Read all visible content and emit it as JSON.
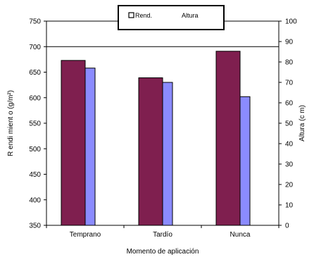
{
  "chart_data": {
    "type": "bar",
    "title": "",
    "xlabel": "Momento  de  aplicación",
    "ylabel": "R endi mient o  (g/m²)",
    "y2label": "Altura  (c m)",
    "categories": [
      "Temprano",
      "Tardío",
      "Nunca"
    ],
    "ylim": [
      350,
      750
    ],
    "y2lim": [
      0,
      100
    ],
    "yticks": [
      350,
      400,
      450,
      500,
      550,
      600,
      650,
      700,
      750
    ],
    "y2ticks": [
      0,
      10,
      20,
      30,
      40,
      50,
      60,
      70,
      80,
      90,
      100
    ],
    "grid": "horizontal line at 700",
    "legend_position": "top-center",
    "series": [
      {
        "name": "Rend.",
        "axis": "left",
        "color": "#7f1f4f",
        "values": [
          673,
          639,
          691
        ]
      },
      {
        "name": "Altura",
        "axis": "right",
        "color": "#8b8bff",
        "values": [
          77,
          70,
          63
        ]
      }
    ]
  }
}
